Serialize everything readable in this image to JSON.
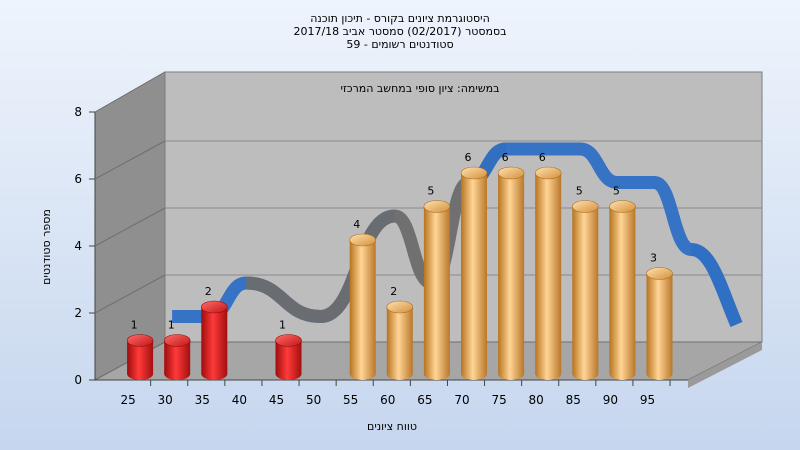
{
  "title": {
    "line1": "היסטוגרמת ציונים בקורס - תיכון תוכנה",
    "line2": "בסמסטר  (02/2017)  סמסטר אביב 2017/18",
    "line3": "סטודנטים רשומים - 59"
  },
  "colors": {
    "background_top": "#e9f0fb",
    "background_bottom": "#c9d9f0",
    "wall_back": "#bdbdbd",
    "wall_left": "#8f8f8f",
    "floor": "#a6a6a6",
    "low_bar": "#e01818",
    "high_bar": "#e3a14a",
    "trend_blue": "#2f6fc4",
    "trend_gray": "#6b6b6b"
  },
  "chart_data": {
    "type": "bar",
    "task_label": "במשימה: ציון סופי במחשב המרכזי",
    "xlabel": "טווח ציונים",
    "ylabel": "מספר סטודנטים",
    "ylim": [
      0,
      8
    ],
    "yticks": [
      "0",
      "2",
      "4",
      "6",
      "8"
    ],
    "categories": [
      "25",
      "30",
      "35",
      "40",
      "45",
      "50",
      "55",
      "60",
      "65",
      "70",
      "75",
      "80",
      "85",
      "90",
      "95"
    ],
    "series": [
      {
        "values": [
          1,
          1,
          2,
          null,
          1,
          null,
          4,
          2,
          5,
          6,
          6,
          6,
          5,
          5,
          3
        ],
        "value_labels": [
          "1",
          "1",
          "2",
          "",
          "1",
          "",
          "4",
          "2",
          "5",
          "6",
          "6",
          "6",
          "5",
          "5",
          "3"
        ],
        "colors": [
          "red",
          "red",
          "red",
          "",
          "red",
          "",
          "orange",
          "orange",
          "orange",
          "orange",
          "orange",
          "orange",
          "orange",
          "orange",
          "orange"
        ]
      }
    ],
    "grid": true,
    "legend": "none"
  }
}
